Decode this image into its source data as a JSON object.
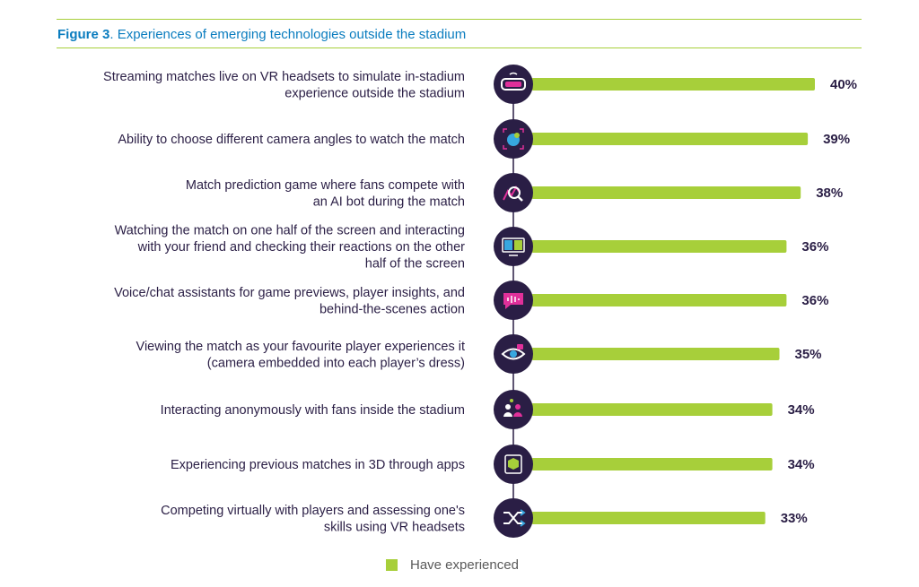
{
  "figure": {
    "label": "Figure 3",
    "caption": ". Experiences of emerging technologies outside the stadium"
  },
  "colors": {
    "bar": "#a7cf3a",
    "icon_bg": "#2a1e45",
    "text": "#2a1e45",
    "title": "#0b7dbf"
  },
  "chart_data": {
    "type": "bar",
    "orientation": "horizontal",
    "title": "Experiences of emerging technologies outside the stadium",
    "series": [
      {
        "name": "Have experienced",
        "unit": "%"
      }
    ],
    "xlim": [
      0,
      40
    ],
    "categories": [
      {
        "label": [
          "Streaming matches live on VR headsets to simulate in-stadium",
          "experience outside the stadium"
        ],
        "value": 40,
        "display": "40%",
        "icon": "vr-headset-icon"
      },
      {
        "label": [
          "Ability to choose different camera angles to watch the match"
        ],
        "value": 39,
        "display": "39%",
        "icon": "camera-angle-icon"
      },
      {
        "label": [
          "Match prediction game where fans compete with",
          "an AI bot during the match"
        ],
        "value": 38,
        "display": "38%",
        "icon": "prediction-analytics-icon"
      },
      {
        "label": [
          "Watching the match on one half of the screen and interacting",
          "with your friend and checking their reactions on the other",
          "half of the screen"
        ],
        "value": 36,
        "display": "36%",
        "icon": "split-screen-icon"
      },
      {
        "label": [
          "Voice/chat assistants for game previews, player insights, and",
          "behind-the-scenes action"
        ],
        "value": 36,
        "display": "36%",
        "icon": "voice-chat-icon"
      },
      {
        "label": [
          "Viewing the match as your favourite player experiences it",
          "(camera embedded into each player’s dress)"
        ],
        "value": 35,
        "display": "35%",
        "icon": "eye-camera-icon"
      },
      {
        "label": [
          "Interacting anonymously with fans inside the stadium"
        ],
        "value": 34,
        "display": "34%",
        "icon": "anonymous-fans-icon"
      },
      {
        "label": [
          "Experiencing previous matches in 3D through apps"
        ],
        "value": 34,
        "display": "34%",
        "icon": "3d-cube-icon"
      },
      {
        "label": [
          "Competing virtually with players and assessing one's",
          "skills using VR headsets"
        ],
        "value": 33,
        "display": "33%",
        "icon": "shuffle-compete-icon"
      }
    ]
  },
  "legend": {
    "label": "Have experienced"
  }
}
